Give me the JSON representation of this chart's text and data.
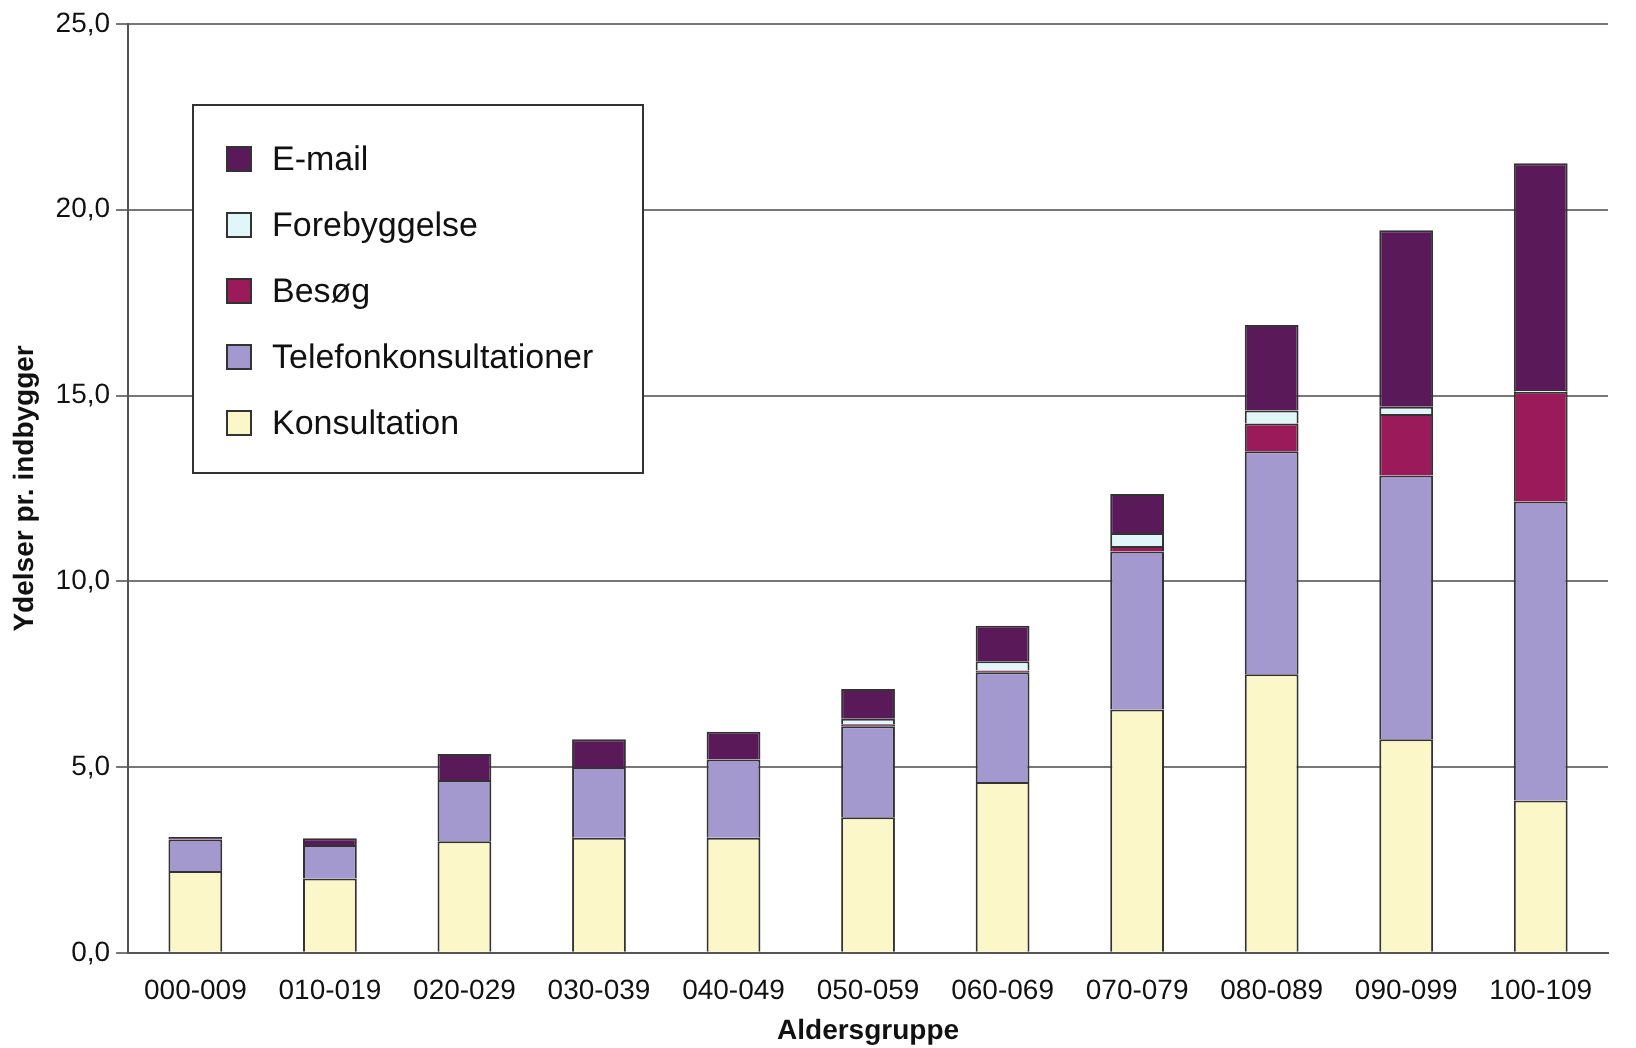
{
  "chart_data": {
    "type": "bar",
    "stacked": true,
    "xlabel": "Aldersgruppe",
    "ylabel": "Ydelser pr. indbygger",
    "categories": [
      "000-009",
      "010-019",
      "020-029",
      "030-039",
      "040-049",
      "050-059",
      "060-069",
      "070-079",
      "080-089",
      "090-099",
      "100-109"
    ],
    "series": [
      {
        "name": "Konsultation",
        "color": "#fbf7c8",
        "values": [
          2.2,
          2.0,
          3.0,
          3.1,
          3.1,
          3.65,
          4.6,
          6.55,
          7.5,
          5.75,
          4.1
        ]
      },
      {
        "name": "Telefonkonsultationer",
        "color": "#a399cf",
        "values": [
          0.85,
          0.9,
          1.65,
          1.9,
          2.1,
          2.45,
          2.95,
          4.25,
          6.0,
          7.1,
          8.05
        ]
      },
      {
        "name": "Besøg",
        "color": "#9b1b5a",
        "values": [
          0,
          0,
          0,
          0,
          0,
          0.05,
          0.05,
          0.15,
          0.75,
          1.65,
          2.95
        ]
      },
      {
        "name": "Forebyggelse",
        "color": "#e0f6f8",
        "values": [
          0,
          0,
          0,
          0,
          0,
          0.15,
          0.25,
          0.35,
          0.35,
          0.2,
          0.05
        ]
      },
      {
        "name": "E-mail",
        "color": "#5a1a5a",
        "values": [
          0.07,
          0.18,
          0.7,
          0.75,
          0.75,
          0.8,
          0.95,
          1.05,
          2.3,
          4.75,
          6.1
        ]
      }
    ],
    "ylim": [
      0,
      25
    ],
    "yticks": [
      {
        "value": 0,
        "label": "0,0"
      },
      {
        "value": 5,
        "label": "5,0"
      },
      {
        "value": 10,
        "label": "10,0"
      },
      {
        "value": 15,
        "label": "15,0"
      },
      {
        "value": 20,
        "label": "20,0"
      },
      {
        "value": 25,
        "label": "25,0"
      }
    ],
    "grid": "y",
    "legend": "top left"
  }
}
